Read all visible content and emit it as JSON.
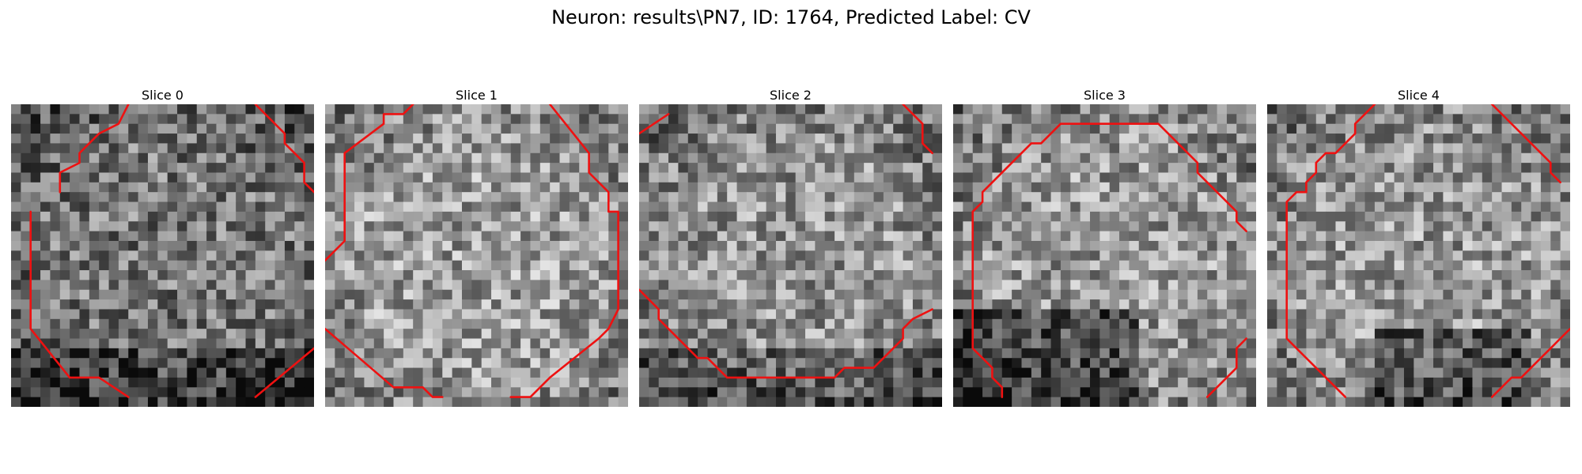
{
  "figure": {
    "title": "Neuron: results\\PN7, ID: 1764, Predicted Label: CV",
    "contour_color": "#ee1111",
    "grid_size": 31
  },
  "panels": [
    {
      "title": "Slice 0",
      "dark_region": "bottom",
      "brightness": 0.47,
      "contour": [
        [
          [
            5,
            9
          ],
          [
            5,
            7
          ],
          [
            7,
            6
          ],
          [
            7,
            5
          ],
          [
            9,
            3
          ],
          [
            11,
            2
          ],
          [
            12,
            0
          ]
        ],
        [
          [
            25,
            0
          ],
          [
            28,
            3
          ],
          [
            28,
            4
          ],
          [
            30,
            6
          ],
          [
            30,
            8
          ],
          [
            31,
            9
          ]
        ],
        [
          [
            2,
            11
          ],
          [
            2,
            23
          ],
          [
            6,
            28
          ],
          [
            7,
            28
          ],
          [
            9,
            28
          ],
          [
            12,
            30
          ]
        ],
        [
          [
            25,
            30
          ],
          [
            31,
            25
          ]
        ]
      ]
    },
    {
      "title": "Slice 1",
      "dark_region": "none",
      "brightness": 0.62,
      "contour": [
        [
          [
            0,
            16
          ],
          [
            2,
            14
          ],
          [
            2,
            5
          ],
          [
            6,
            2
          ],
          [
            6,
            1
          ],
          [
            8,
            1
          ],
          [
            9,
            0
          ]
        ],
        [
          [
            23,
            0
          ],
          [
            27,
            5
          ],
          [
            27,
            7
          ],
          [
            29,
            9
          ],
          [
            29,
            11
          ],
          [
            30,
            11
          ],
          [
            30,
            21
          ],
          [
            29,
            23
          ],
          [
            28,
            24
          ]
        ],
        [
          [
            0,
            23
          ],
          [
            7,
            29
          ],
          [
            10,
            29
          ],
          [
            11,
            30
          ],
          [
            12,
            30
          ]
        ],
        [
          [
            19,
            30
          ],
          [
            19,
            30
          ],
          [
            21,
            30
          ],
          [
            23,
            28
          ],
          [
            28,
            24
          ]
        ]
      ]
    },
    {
      "title": "Slice 2",
      "dark_region": "bottom",
      "brightness": 0.58,
      "contour": [
        [
          [
            0,
            3
          ],
          [
            3,
            1
          ]
        ],
        [
          [
            27,
            0
          ],
          [
            29,
            2
          ],
          [
            29,
            4
          ],
          [
            30,
            5
          ]
        ],
        [
          [
            0,
            19
          ],
          [
            2,
            21
          ],
          [
            2,
            22
          ],
          [
            6,
            26
          ],
          [
            7,
            26
          ],
          [
            9,
            28
          ],
          [
            11,
            28
          ],
          [
            20,
            28
          ],
          [
            21,
            27
          ],
          [
            24,
            27
          ],
          [
            26,
            25
          ],
          [
            27,
            24
          ],
          [
            27,
            23
          ],
          [
            28,
            22
          ],
          [
            30,
            21
          ]
        ]
      ]
    },
    {
      "title": "Slice 3",
      "dark_region": "bottom-left",
      "brightness": 0.6,
      "contour": [
        [
          [
            2,
            12
          ],
          [
            2,
            11
          ],
          [
            3,
            10
          ],
          [
            3,
            9
          ],
          [
            8,
            4
          ],
          [
            9,
            4
          ],
          [
            11,
            2
          ],
          [
            21,
            2
          ],
          [
            25,
            6
          ],
          [
            25,
            7
          ],
          [
            29,
            11
          ],
          [
            29,
            12
          ],
          [
            30,
            13
          ]
        ],
        [
          [
            2,
            12
          ],
          [
            2,
            25
          ],
          [
            3,
            26
          ],
          [
            4,
            27
          ],
          [
            4,
            28
          ],
          [
            5,
            29
          ],
          [
            5,
            30
          ]
        ],
        [
          [
            26,
            30
          ],
          [
            28,
            28
          ],
          [
            29,
            27
          ],
          [
            29,
            25
          ],
          [
            30,
            24
          ]
        ]
      ]
    },
    {
      "title": "Slice 4",
      "dark_region": "bottom-right",
      "brightness": 0.6,
      "contour": [
        [
          [
            11,
            0
          ],
          [
            10,
            1
          ],
          [
            9,
            2
          ],
          [
            9,
            3
          ],
          [
            7,
            5
          ],
          [
            6,
            5
          ],
          [
            5,
            6
          ],
          [
            5,
            7
          ],
          [
            4,
            8
          ],
          [
            4,
            9
          ],
          [
            3,
            9
          ],
          [
            2,
            10
          ],
          [
            2,
            11
          ],
          [
            2,
            24
          ],
          [
            3,
            25
          ],
          [
            8,
            30
          ]
        ],
        [
          [
            23,
            0
          ],
          [
            29,
            6
          ],
          [
            29,
            7
          ],
          [
            30,
            8
          ]
        ],
        [
          [
            23,
            30
          ],
          [
            24,
            29
          ],
          [
            25,
            28
          ],
          [
            26,
            28
          ],
          [
            28,
            26
          ],
          [
            29,
            25
          ],
          [
            30,
            24
          ],
          [
            31,
            23
          ]
        ]
      ]
    }
  ]
}
